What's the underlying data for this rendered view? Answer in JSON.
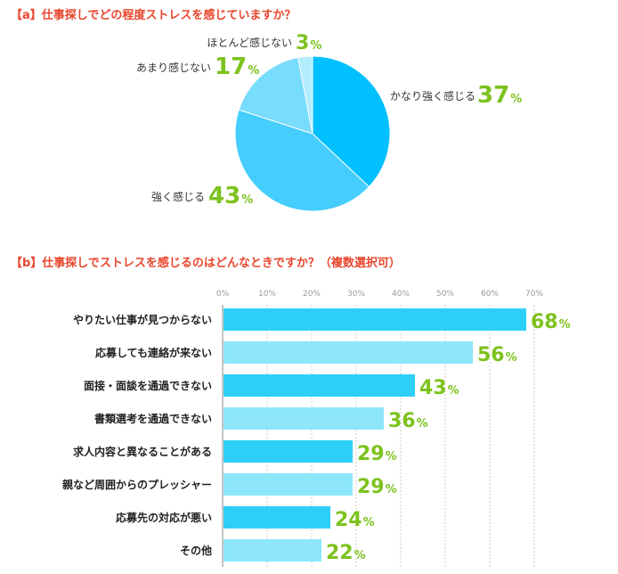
{
  "colors": {
    "title": "#e8452c",
    "percent": "#7dc21e",
    "bar_dark": "#2ecff7",
    "bar_light": "#8ee6fb",
    "pie": [
      "#00c0ff",
      "#45cdfd",
      "#78dcfc",
      "#b2ecfd"
    ]
  },
  "chart_data": [
    {
      "type": "pie",
      "title": "【a】仕事探しでどの程度ストレスを感じていますか？",
      "unit": "%",
      "slices": [
        {
          "label": "かなり強く感じる",
          "value": 37
        },
        {
          "label": "強く感じる",
          "value": 43
        },
        {
          "label": "あまり感じない",
          "value": 17
        },
        {
          "label": "ほとんど感じない",
          "value": 3
        }
      ]
    },
    {
      "type": "bar",
      "orientation": "horizontal",
      "title": "【b】仕事探しでストレスを感じるのはどんなときですか？（複数選択可）",
      "unit": "%",
      "categories": [
        "やりたい仕事が見つからない",
        "応募しても連絡が来ない",
        "面接・面談を通過できない",
        "書類選考を通過できない",
        "求人内容と異なることがある",
        "親など周囲からのプレッシャー",
        "応募先の対応が悪い",
        "その他"
      ],
      "values": [
        68,
        56,
        43,
        36,
        29,
        29,
        24,
        22
      ],
      "xlim": [
        0,
        70
      ],
      "ticks": [
        "0%",
        "10%",
        "20%",
        "30%",
        "40%",
        "50%",
        "60%",
        "70%"
      ],
      "grid": true
    }
  ]
}
